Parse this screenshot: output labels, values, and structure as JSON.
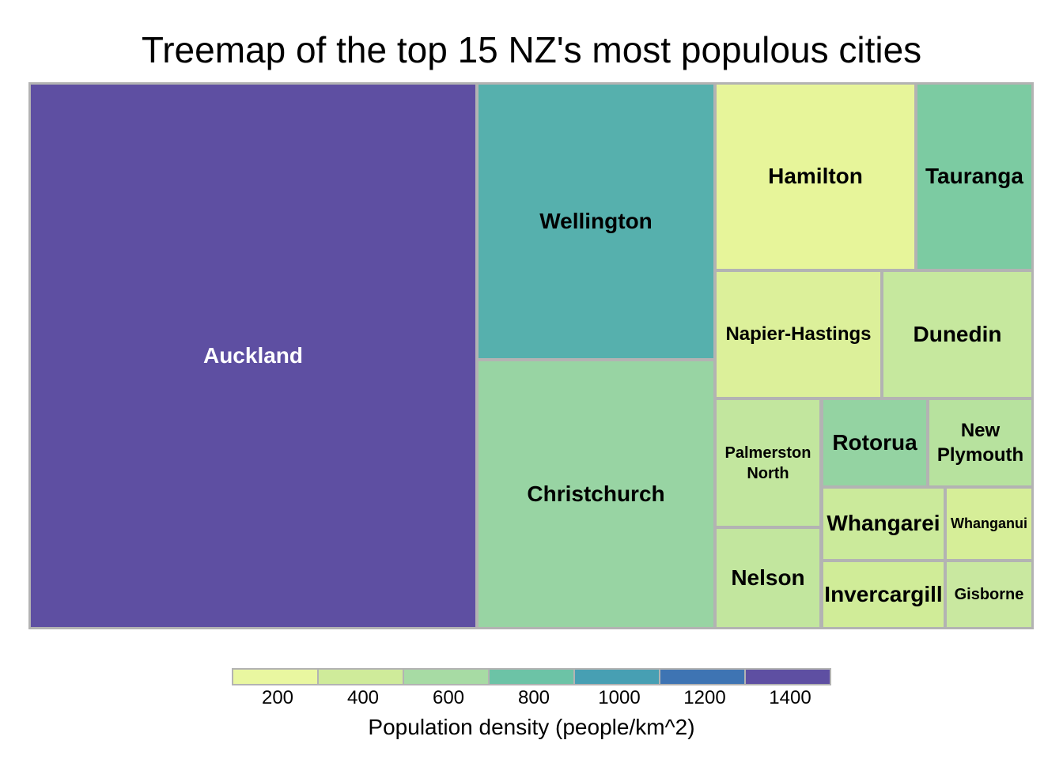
{
  "chart_data": {
    "type": "treemap",
    "title": "Treemap of the top 15 NZ's most populous cities",
    "color_legend": {
      "title": "Population density (people/km^2)",
      "ticks": [
        "200",
        "400",
        "600",
        "800",
        "1000",
        "1200",
        "1400"
      ],
      "colors": [
        "#e9f7a0",
        "#cfeb9a",
        "#a7dba4",
        "#6cc3a6",
        "#479fb3",
        "#3e74b3",
        "#5e4fa2"
      ]
    },
    "cells": [
      {
        "name": "Auckland",
        "density": 1400,
        "color": "#5e4fa2"
      },
      {
        "name": "Wellington",
        "density": 950,
        "color": "#56b0ad"
      },
      {
        "name": "Christchurch",
        "density": 620,
        "color": "#98d4a3"
      },
      {
        "name": "Hamilton",
        "density": 150,
        "color": "#e7f59a"
      },
      {
        "name": "Tauranga",
        "density": 720,
        "color": "#7ccba2"
      },
      {
        "name": "Napier-Hastings",
        "density": 250,
        "color": "#dcf09a"
      },
      {
        "name": "Dunedin",
        "density": 420,
        "color": "#c6e89e"
      },
      {
        "name": "Palmerston North",
        "density": 400,
        "color": "#c2e69e"
      },
      {
        "name": "Nelson",
        "density": 400,
        "color": "#c2e69e"
      },
      {
        "name": "Rotorua",
        "density": 640,
        "color": "#94d3a2"
      },
      {
        "name": "New Plymouth",
        "density": 480,
        "color": "#b7e29e"
      },
      {
        "name": "Whangarei",
        "density": 350,
        "color": "#cbea9b"
      },
      {
        "name": "Whanganui",
        "density": 270,
        "color": "#d6ee98"
      },
      {
        "name": "Invercargill",
        "density": 310,
        "color": "#d0ec98"
      },
      {
        "name": "Gisborne",
        "density": 380,
        "color": "#c9e8a0"
      }
    ]
  }
}
